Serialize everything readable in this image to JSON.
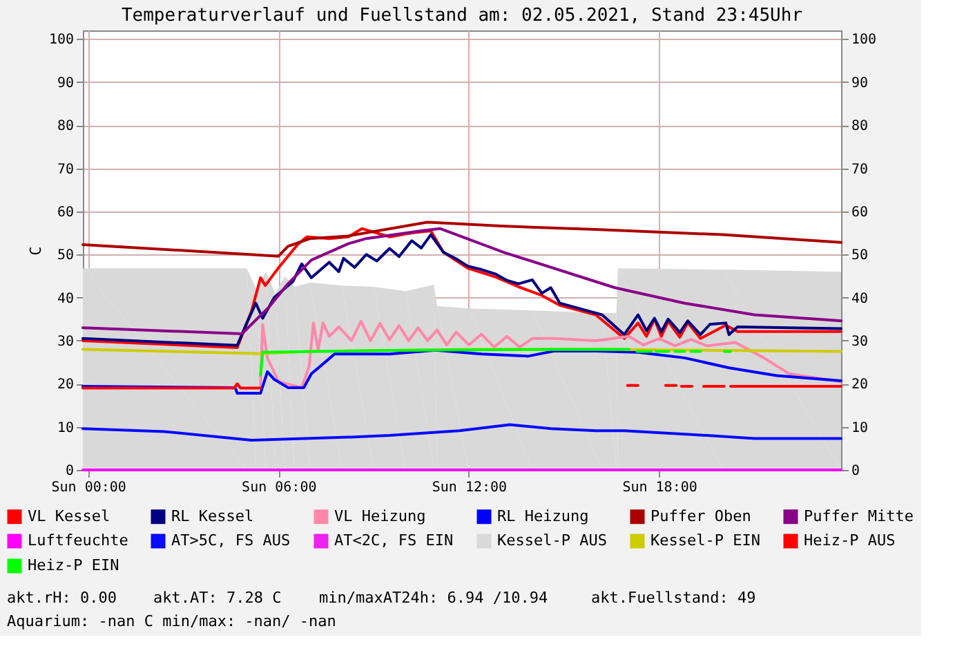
{
  "chart_data": {
    "type": "line",
    "title": "Temperaturverlauf und Fuellstand am: 02.05.2021, Stand 23:45Uhr",
    "ylabel": "C",
    "xlim": [
      "2021-05-01T23:50",
      "2021-05-02T23:44"
    ],
    "xticks": [
      {
        "value": "2021-05-02T00:00",
        "label": "Sun 00:00"
      },
      {
        "value": "2021-05-02T06:00",
        "label": "Sun 06:00"
      },
      {
        "value": "2021-05-02T12:00",
        "label": "Sun 12:00"
      },
      {
        "value": "2021-05-02T18:00",
        "label": "Sun 18:00"
      }
    ],
    "ylim": [
      0,
      102
    ],
    "yticks": [
      0,
      10,
      20,
      30,
      40,
      50,
      60,
      70,
      80,
      90,
      100
    ],
    "y2lim": [
      0,
      102
    ],
    "y2ticks": [
      0,
      10,
      20,
      30,
      40,
      50,
      60,
      70,
      80,
      90,
      100
    ],
    "grid": true,
    "legend": "bottom",
    "line_style": "solid",
    "marker": "none",
    "annotations": [
      "akt.rH: 0.00",
      "akt.AT: 7.28 C",
      "min/maxAT24h: 6.94 /10.94",
      "akt.Fuellstand:    49",
      "Aquarium: -nan C  min/max: -nan/ -nan"
    ],
    "series": [
      {
        "name": "VL Kessel",
        "color": "#ff0000",
        "x": [
          "2021-05-01T23:50",
          "2021-05-02T04:42",
          "2021-05-02T05:09",
          "2021-05-02T05:26",
          "2021-05-02T05:35",
          "2021-05-02T06:00",
          "2021-05-02T06:36",
          "2021-05-02T06:54",
          "2021-05-02T07:36",
          "2021-05-02T08:12",
          "2021-05-02T08:38",
          "2021-05-02T09:30",
          "2021-05-02T10:12",
          "2021-05-02T10:48",
          "2021-05-02T11:12",
          "2021-05-02T11:58",
          "2021-05-02T12:50",
          "2021-05-02T13:34",
          "2021-05-02T14:18",
          "2021-05-02T14:52",
          "2021-05-02T16:00",
          "2021-05-02T16:54",
          "2021-05-02T17:20",
          "2021-05-02T17:36",
          "2021-05-02T17:51",
          "2021-05-02T18:04",
          "2021-05-02T18:17",
          "2021-05-02T18:39",
          "2021-05-02T18:54",
          "2021-05-02T19:18",
          "2021-05-02T20:06",
          "2021-05-02T20:28",
          "2021-05-02T23:44"
        ],
        "values": [
          30.0,
          28.4,
          36.9,
          44.6,
          42.8,
          46.9,
          52.3,
          54.1,
          53.7,
          54.1,
          56.0,
          54.1,
          55.0,
          55.5,
          50.5,
          46.8,
          44.8,
          42.5,
          40.5,
          38.2,
          36.0,
          30.5,
          34.1,
          31.0,
          35.0,
          31.0,
          34.5,
          30.8,
          34.2,
          30.5,
          33.6,
          32.1,
          32.1
        ]
      },
      {
        "name": "RL Kessel",
        "color": "#000080",
        "x": [
          "2021-05-01T23:50",
          "2021-05-02T04:42",
          "2021-05-02T05:00",
          "2021-05-02T05:17",
          "2021-05-02T05:30",
          "2021-05-02T05:52",
          "2021-05-02T06:27",
          "2021-05-02T06:44",
          "2021-05-02T07:02",
          "2021-05-02T07:36",
          "2021-05-02T07:54",
          "2021-05-02T08:03",
          "2021-05-02T08:24",
          "2021-05-02T08:46",
          "2021-05-02T09:06",
          "2021-05-02T09:30",
          "2021-05-02T09:48",
          "2021-05-02T10:12",
          "2021-05-02T10:30",
          "2021-05-02T10:48",
          "2021-05-02T11:12",
          "2021-05-02T11:36",
          "2021-05-02T11:58",
          "2021-05-02T12:24",
          "2021-05-02T12:50",
          "2021-05-02T13:12",
          "2021-05-02T13:34",
          "2021-05-02T14:00",
          "2021-05-02T14:18",
          "2021-05-02T14:35",
          "2021-05-02T14:52",
          "2021-05-02T16:00",
          "2021-05-02T16:12",
          "2021-05-02T16:54",
          "2021-05-02T17:20",
          "2021-05-02T17:36",
          "2021-05-02T17:51",
          "2021-05-02T18:04",
          "2021-05-02T18:17",
          "2021-05-02T18:39",
          "2021-05-02T18:54",
          "2021-05-02T19:18",
          "2021-05-02T19:36",
          "2021-05-02T20:06",
          "2021-05-02T20:12",
          "2021-05-02T20:28",
          "2021-05-02T23:44"
        ],
        "values": [
          30.5,
          28.9,
          34.1,
          38.7,
          35.2,
          40.0,
          43.7,
          47.8,
          44.6,
          48.2,
          46.0,
          49.1,
          47.0,
          50.0,
          48.5,
          51.4,
          49.5,
          53.2,
          51.5,
          54.6,
          50.5,
          49.0,
          47.3,
          46.5,
          45.5,
          44.0,
          43.2,
          44.1,
          41.0,
          42.3,
          38.7,
          36.4,
          36.0,
          31.4,
          36.0,
          32.3,
          35.2,
          32.1,
          35.0,
          31.9,
          34.6,
          31.4,
          33.8,
          34.1,
          31.4,
          33.2,
          32.8
        ]
      },
      {
        "name": "VL Heizung",
        "color": "#ff88aa",
        "x": [
          "2021-05-02T05:26",
          "2021-05-02T05:30",
          "2021-05-02T05:39",
          "2021-05-02T06:00",
          "2021-05-02T06:44",
          "2021-05-02T06:58",
          "2021-05-02T07:06",
          "2021-05-02T07:15",
          "2021-05-02T07:24",
          "2021-05-02T07:36",
          "2021-05-02T07:54",
          "2021-05-02T08:18",
          "2021-05-02T08:36",
          "2021-05-02T08:54",
          "2021-05-02T09:12",
          "2021-05-02T09:30",
          "2021-05-02T09:48",
          "2021-05-02T10:06",
          "2021-05-02T10:24",
          "2021-05-02T10:42",
          "2021-05-02T11:00",
          "2021-05-02T11:18",
          "2021-05-02T11:36",
          "2021-05-02T12:00",
          "2021-05-02T12:24",
          "2021-05-02T12:48",
          "2021-05-02T13:12",
          "2021-05-02T13:36",
          "2021-05-02T14:00",
          "2021-05-02T14:42",
          "2021-05-02T16:00",
          "2021-05-02T17:03",
          "2021-05-02T17:30",
          "2021-05-02T18:00",
          "2021-05-02T18:30",
          "2021-05-02T19:00",
          "2021-05-02T19:30",
          "2021-05-02T20:24",
          "2021-05-02T21:18",
          "2021-05-02T22:06",
          "2021-05-02T23:44"
        ],
        "values": [
          19.6,
          33.7,
          26.0,
          20.5,
          19.1,
          24.1,
          34.1,
          27.8,
          34.1,
          31.0,
          33.2,
          30.0,
          34.5,
          30.0,
          34.0,
          30.2,
          33.5,
          30.0,
          33.0,
          30.0,
          32.5,
          29.0,
          32.0,
          29.0,
          31.5,
          28.5,
          31.0,
          28.5,
          30.5,
          30.5,
          30.0,
          31.0,
          29.0,
          30.5,
          28.8,
          30.3,
          28.8,
          29.6,
          26.0,
          22.3,
          20.5
        ]
      },
      {
        "name": "RL Heizung",
        "color": "#0000ff",
        "x": [
          "2021-05-01T23:50",
          "2021-05-02T04:38",
          "2021-05-02T04:42",
          "2021-05-02T05:26",
          "2021-05-02T05:39",
          "2021-05-02T05:52",
          "2021-05-02T06:18",
          "2021-05-02T06:48",
          "2021-05-02T07:02",
          "2021-05-02T07:28",
          "2021-05-02T07:46",
          "2021-05-02T08:12",
          "2021-05-02T09:30",
          "2021-05-02T10:57",
          "2021-05-02T12:24",
          "2021-05-02T13:52",
          "2021-05-02T14:42",
          "2021-05-02T16:00",
          "2021-05-02T17:20",
          "2021-05-02T18:48",
          "2021-05-02T20:12",
          "2021-05-02T21:42",
          "2021-05-02T23:44"
        ],
        "values": [
          19.4,
          19.1,
          17.8,
          17.8,
          22.8,
          21.0,
          19.1,
          19.1,
          22.3,
          25.0,
          26.9,
          26.9,
          26.9,
          27.8,
          26.9,
          26.4,
          27.6,
          27.6,
          27.3,
          26.0,
          23.7,
          21.9,
          20.7
        ]
      },
      {
        "name": "Puffer Oben",
        "color": "#aa0000",
        "x": [
          "2021-05-01T23:50",
          "2021-05-02T06:00",
          "2021-05-02T06:18",
          "2021-05-02T07:00",
          "2021-05-02T08:12",
          "2021-05-02T10:42",
          "2021-05-02T13:00",
          "2021-05-02T16:00",
          "2021-05-02T20:00",
          "2021-05-02T23:44"
        ],
        "values": [
          52.3,
          49.6,
          51.9,
          53.7,
          54.3,
          57.5,
          56.6,
          55.8,
          54.6,
          52.8
        ]
      },
      {
        "name": "Puffer Mitte",
        "color": "#880088",
        "x": [
          "2021-05-01T23:50",
          "2021-05-02T04:51",
          "2021-05-02T05:04",
          "2021-05-02T05:42",
          "2021-05-02T06:18",
          "2021-05-02T07:02",
          "2021-05-02T08:12",
          "2021-05-02T08:46",
          "2021-05-02T10:30",
          "2021-05-02T11:06",
          "2021-05-02T13:06",
          "2021-05-02T16:00",
          "2021-05-02T16:36",
          "2021-05-02T18:48",
          "2021-05-02T21:00",
          "2021-05-02T23:44"
        ],
        "values": [
          33.0,
          31.6,
          33.2,
          37.8,
          43.2,
          48.7,
          52.5,
          53.7,
          55.5,
          56.0,
          50.5,
          43.7,
          42.3,
          38.7,
          36.0,
          34.6
        ]
      },
      {
        "name": "Luftfeuchte",
        "color": "#ff00ff",
        "x": [
          "2021-05-01T23:50",
          "2021-05-02T23:44"
        ],
        "values": [
          0,
          0
        ]
      },
      {
        "name": "AT>5C, FS AUS",
        "color": "#0a0aff",
        "x": [
          "2021-05-01T23:50",
          "2021-05-02T02:24",
          "2021-05-02T05:09",
          "2021-05-02T08:12",
          "2021-05-02T09:30",
          "2021-05-02T11:42",
          "2021-05-02T13:18",
          "2021-05-02T14:36",
          "2021-05-02T16:00",
          "2021-05-02T16:54",
          "2021-05-02T19:30",
          "2021-05-02T21:00",
          "2021-05-02T23:44"
        ],
        "values": [
          9.6,
          8.9,
          6.9,
          7.6,
          8.0,
          9.1,
          10.5,
          9.6,
          9.1,
          9.1,
          8.0,
          7.3,
          7.3
        ]
      },
      {
        "name": "AT<2C, FS EIN",
        "color": "#ee22ee"
      },
      {
        "name": "Kessel-P AUS",
        "color": "#d9d9d9",
        "type": "area",
        "x": [
          "2021-05-01T23:50",
          "2021-05-02T05:00",
          "2021-05-02T05:18",
          "2021-05-02T05:36",
          "2021-05-02T05:54",
          "2021-05-02T06:12",
          "2021-05-02T06:30",
          "2021-05-02T07:00",
          "2021-05-02T08:00",
          "2021-05-02T09:00",
          "2021-05-02T10:00",
          "2021-05-02T10:54",
          "2021-05-02T11:00",
          "2021-05-02T12:00",
          "2021-05-02T14:00",
          "2021-05-02T16:12",
          "2021-05-02T16:39",
          "2021-05-02T16:42",
          "2021-05-02T20:00",
          "2021-05-02T23:44"
        ],
        "values": [
          46.8,
          46.8,
          42.0,
          46.0,
          41.0,
          45.0,
          42.5,
          43.5,
          42.8,
          42.5,
          41.5,
          43.0,
          38.0,
          37.5,
          37.0,
          36.4,
          36.4,
          46.8,
          46.5,
          46.0
        ]
      },
      {
        "name": "Kessel-P EIN",
        "color": "#cccc00",
        "x": [
          "2021-05-01T23:50",
          "2021-05-02T05:26",
          "2021-05-02T07:00",
          "2021-05-02T12:00",
          "2021-05-02T16:00",
          "2021-05-02T23:44"
        ],
        "values": [
          28.0,
          27.0,
          27.5,
          28.0,
          28.0,
          27.5
        ]
      },
      {
        "name": "Heiz-P AUS",
        "color": "#ff0000",
        "x": [
          "2021-05-01T23:50",
          "2021-05-02T04:36",
          "2021-05-02T04:42",
          "2021-05-02T04:48",
          "2021-05-02T05:26",
          "2021-05-02T05:30",
          "2021-05-02T17:00",
          "2021-05-02T17:20",
          "2021-05-02T17:21",
          "2021-05-02T18:12",
          "2021-05-02T18:32",
          "2021-05-02T18:33",
          "2021-05-02T18:42",
          "2021-05-02T19:02",
          "2021-05-02T19:03",
          "2021-05-02T19:24",
          "2021-05-02T20:03",
          "2021-05-02T20:06",
          "2021-05-02T20:15",
          "2021-05-02T23:44"
        ],
        "values": [
          19.0,
          19.0,
          20.0,
          19.0,
          19.0,
          null,
          19.6,
          19.6,
          null,
          19.6,
          19.6,
          null,
          19.4,
          19.4,
          null,
          19.4,
          19.4,
          null,
          19.4,
          19.4
        ]
      },
      {
        "name": "Heiz-P EIN",
        "color": "#00ff00",
        "x": [
          "2021-05-02T05:26",
          "2021-05-02T05:30",
          "2021-05-02T10:00",
          "2021-05-02T15:00",
          "2021-05-02T17:03",
          "2021-05-02T17:06",
          "2021-05-02T17:18",
          "2021-05-02T17:45",
          "2021-05-02T17:48",
          "2021-05-02T17:54",
          "2021-05-02T18:18",
          "2021-05-02T18:21",
          "2021-05-02T18:30",
          "2021-05-02T18:48",
          "2021-05-02T18:51",
          "2021-05-02T19:00",
          "2021-05-02T19:18",
          "2021-05-02T19:21",
          "2021-05-02T20:03",
          "2021-05-02T20:15"
        ],
        "values": [
          22.0,
          27.3,
          27.8,
          28.0,
          28.0,
          null,
          27.5,
          27.5,
          null,
          27.5,
          27.5,
          null,
          27.5,
          27.5,
          null,
          27.5,
          27.5,
          null,
          27.5,
          27.5
        ]
      }
    ]
  }
}
